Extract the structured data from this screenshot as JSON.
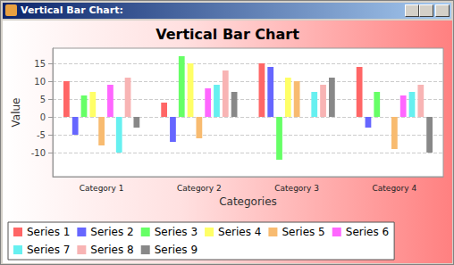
{
  "window_title": "Vertical Bar Chart:",
  "chart_data": {
    "type": "bar",
    "title": "Vertical Bar Chart",
    "x_label": "Categories",
    "y_label": "Value",
    "categories": [
      "Category 1",
      "Category 2",
      "Category 3",
      "Category 4"
    ],
    "series": [
      {
        "name": "Series 1",
        "color": "#ff6666",
        "values": [
          10,
          4,
          15,
          14
        ]
      },
      {
        "name": "Series 2",
        "color": "#6666ff",
        "values": [
          -5,
          -7,
          14,
          -3
        ]
      },
      {
        "name": "Series 3",
        "color": "#66ff66",
        "values": [
          6,
          17,
          -12,
          7
        ]
      },
      {
        "name": "Series 4",
        "color": "#ffff66",
        "values": [
          7,
          15,
          11,
          0
        ]
      },
      {
        "name": "Series 5",
        "color": "#f8bb70",
        "values": [
          -8,
          -6,
          10,
          -9
        ]
      },
      {
        "name": "Series 6",
        "color": "#ff66ff",
        "values": [
          9,
          8,
          0,
          6
        ]
      },
      {
        "name": "Series 7",
        "color": "#66f0f0",
        "values": [
          -10,
          9,
          7,
          7
        ]
      },
      {
        "name": "Series 8",
        "color": "#f8b4b4",
        "values": [
          11,
          13,
          9,
          9
        ]
      },
      {
        "name": "Series 9",
        "color": "#888888",
        "values": [
          -3,
          7,
          11,
          -10
        ]
      }
    ],
    "ylim": [
      -16.75,
      19.25
    ],
    "yticks": [
      -10,
      -5,
      0,
      5,
      10,
      15
    ],
    "grid": true,
    "legend": "bottom"
  }
}
